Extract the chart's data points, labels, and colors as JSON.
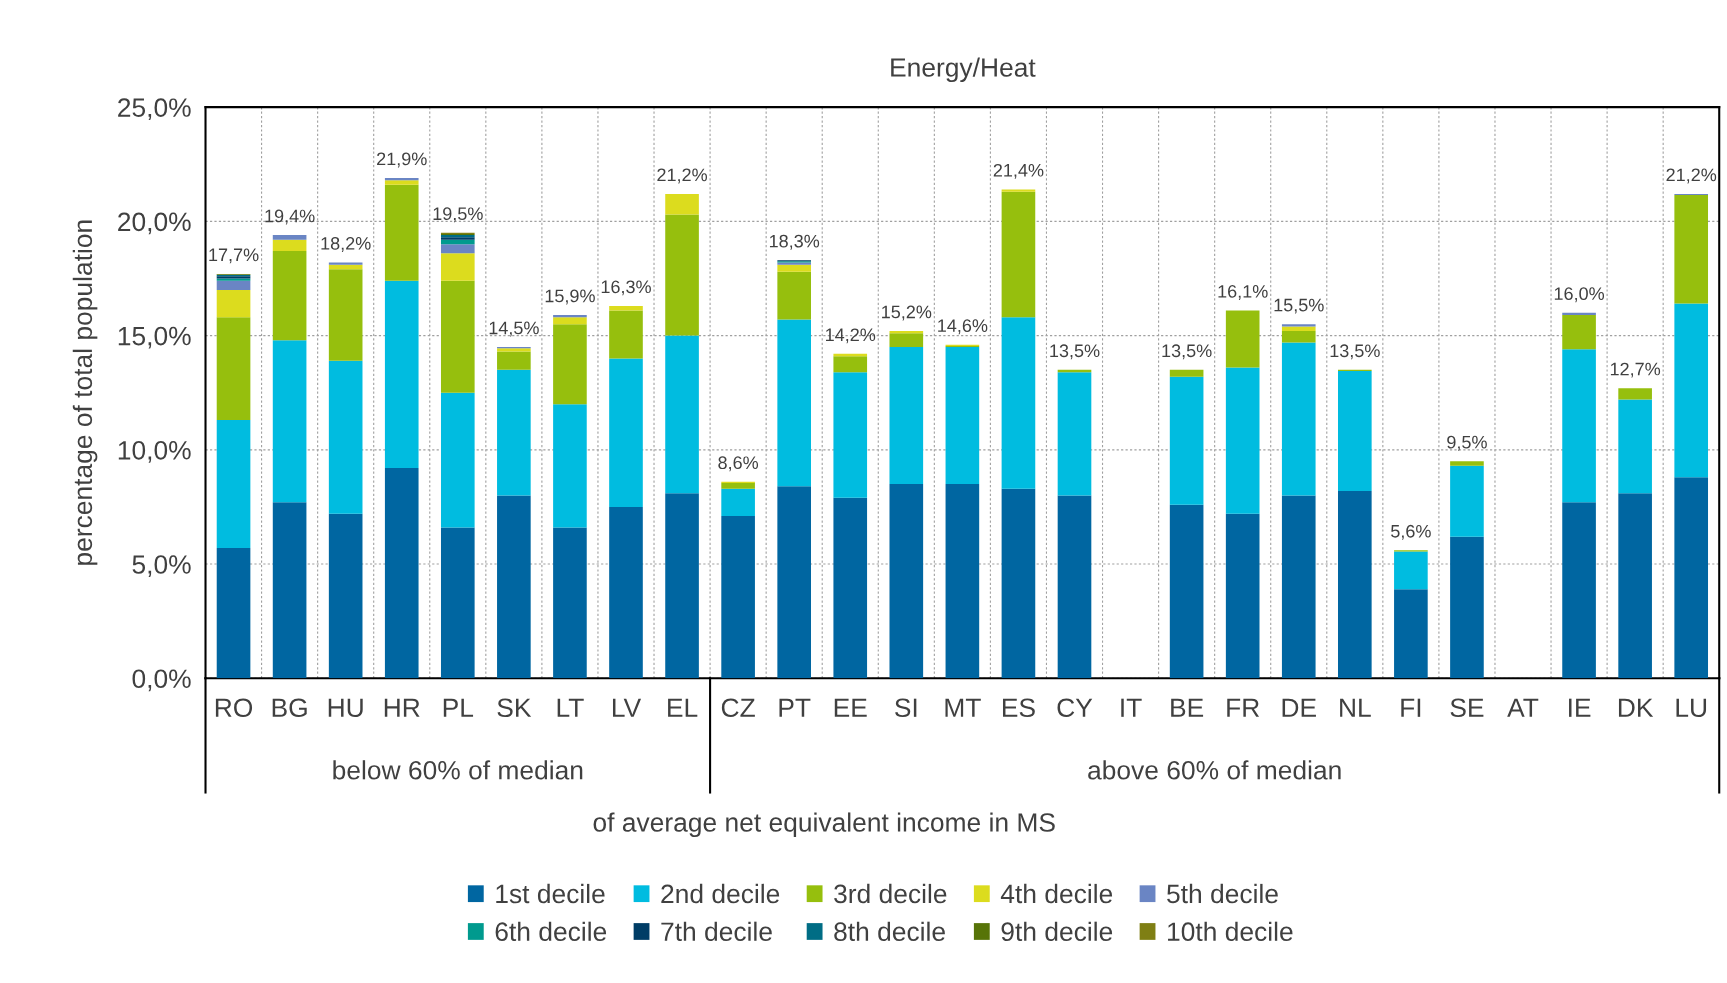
{
  "chart_data": {
    "type": "bar",
    "stacked": true,
    "title": "Energy/Heat",
    "ylabel": "percentage of total population",
    "xlabel": "of average net equivalent income in MS",
    "annotations": [
      "below 60% of median",
      "above 60% of median"
    ],
    "categories": [
      "RO",
      "BG",
      "HU",
      "HR",
      "PL",
      "SK",
      "LT",
      "LV",
      "EL",
      "CZ",
      "PT",
      "EE",
      "SI",
      "MT",
      "ES",
      "CY",
      "IT",
      "BE",
      "FR",
      "DE",
      "NL",
      "FI",
      "SE",
      "AT",
      "IE",
      "DK",
      "LU"
    ],
    "series": [
      {
        "name": "1st decile",
        "color": "#0066a1",
        "values": [
          5.7,
          7.7,
          7.2,
          9.2,
          6.6,
          8.0,
          6.6,
          7.5,
          8.1,
          7.1,
          8.4,
          7.9,
          8.5,
          8.5,
          8.3,
          8.0,
          null,
          7.6,
          7.2,
          8.0,
          8.2,
          3.9,
          6.2,
          null,
          7.7,
          8.1,
          8.8
        ]
      },
      {
        "name": "2nd decile",
        "color": "#00bce0",
        "values": [
          5.6,
          7.1,
          6.7,
          8.2,
          5.9,
          5.5,
          5.4,
          6.5,
          6.9,
          1.2,
          7.3,
          5.5,
          6.0,
          6.0,
          7.5,
          5.4,
          null,
          5.6,
          6.4,
          6.7,
          5.25,
          1.65,
          3.1,
          null,
          6.7,
          4.1,
          7.6
        ]
      },
      {
        "name": "3rd decile",
        "color": "#96bf0d",
        "values": [
          4.5,
          3.9,
          4.0,
          4.2,
          4.9,
          0.8,
          3.5,
          2.1,
          5.3,
          0.25,
          2.1,
          0.7,
          0.6,
          0.05,
          5.5,
          0.1,
          null,
          0.3,
          2.5,
          0.5,
          0.05,
          0.05,
          0.2,
          null,
          1.5,
          0.5,
          4.75
        ]
      },
      {
        "name": "4th decile",
        "color": "#dcdc1e",
        "values": [
          1.2,
          0.5,
          0.2,
          0.2,
          1.2,
          0.15,
          0.3,
          0.2,
          0.9,
          0.05,
          0.3,
          0.1,
          0.1,
          0.05,
          0.1,
          0,
          null,
          0,
          0,
          0.2,
          0,
          0,
          0,
          null,
          0,
          0,
          0
        ]
      },
      {
        "name": "5th decile",
        "color": "#6a85c4",
        "values": [
          0.4,
          0.2,
          0.1,
          0.1,
          0.4,
          0.05,
          0.1,
          0,
          0,
          0,
          0.1,
          0,
          0,
          0,
          0,
          0,
          null,
          0,
          0,
          0.1,
          0,
          0,
          0,
          null,
          0.1,
          0,
          0.05
        ]
      },
      {
        "name": "6th decile",
        "color": "#009a8e",
        "values": [
          0.1,
          0,
          0,
          0,
          0.2,
          0,
          0,
          0,
          0,
          0,
          0.05,
          0,
          0,
          0,
          0,
          0,
          null,
          0,
          0,
          0,
          0,
          0,
          0,
          null,
          0,
          0,
          0
        ]
      },
      {
        "name": "7th decile",
        "color": "#003d66",
        "values": [
          0.1,
          0,
          0,
          0,
          0.1,
          0,
          0,
          0,
          0,
          0,
          0.05,
          0,
          0,
          0,
          0,
          0,
          null,
          0,
          0,
          0,
          0,
          0,
          0,
          null,
          0,
          0,
          0
        ]
      },
      {
        "name": "8th decile",
        "color": "#006d85",
        "values": [
          0.05,
          0,
          0,
          0,
          0.1,
          0,
          0,
          0,
          0,
          0,
          0,
          0,
          0,
          0,
          0,
          0,
          null,
          0,
          0,
          0,
          0,
          0,
          0,
          null,
          0,
          0,
          0
        ]
      },
      {
        "name": "9th decile",
        "color": "#577408",
        "values": [
          0.03,
          0,
          0,
          0,
          0.05,
          0,
          0,
          0,
          0,
          0,
          0,
          0,
          0,
          0,
          0,
          0,
          null,
          0,
          0,
          0,
          0,
          0,
          0,
          null,
          0,
          0,
          0
        ]
      },
      {
        "name": "10th decile",
        "color": "#7f7f14",
        "values": [
          0.02,
          0,
          0,
          0,
          0.05,
          0,
          0,
          0,
          0,
          0,
          0,
          0,
          0,
          0,
          0,
          0,
          null,
          0,
          0,
          0,
          0,
          0,
          0,
          null,
          0,
          0,
          0
        ]
      }
    ],
    "totals": [
      "17,7%",
      "19,4%",
      "18,2%",
      "21,9%",
      "19,5%",
      "14,5%",
      "15,9%",
      "16,3%",
      "21,2%",
      "8,6%",
      "18,3%",
      "14,2%",
      "15,2%",
      "14,6%",
      "21,4%",
      "13,5%",
      null,
      "13,5%",
      "16,1%",
      "15,5%",
      "13,5%",
      "5,6%",
      "9,5%",
      null,
      "16,0%",
      "12,7%",
      "21,2%"
    ],
    "ylim": [
      0,
      25
    ],
    "yticks": [
      {
        "value": 0,
        "label": "0,0%"
      },
      {
        "value": 5,
        "label": "5,0%"
      },
      {
        "value": 10,
        "label": "10,0%"
      },
      {
        "value": 15,
        "label": "15,0%"
      },
      {
        "value": 20,
        "label": "20,0%"
      },
      {
        "value": 25,
        "label": "25,0%"
      }
    ],
    "grid": true,
    "legend": "bottom"
  }
}
